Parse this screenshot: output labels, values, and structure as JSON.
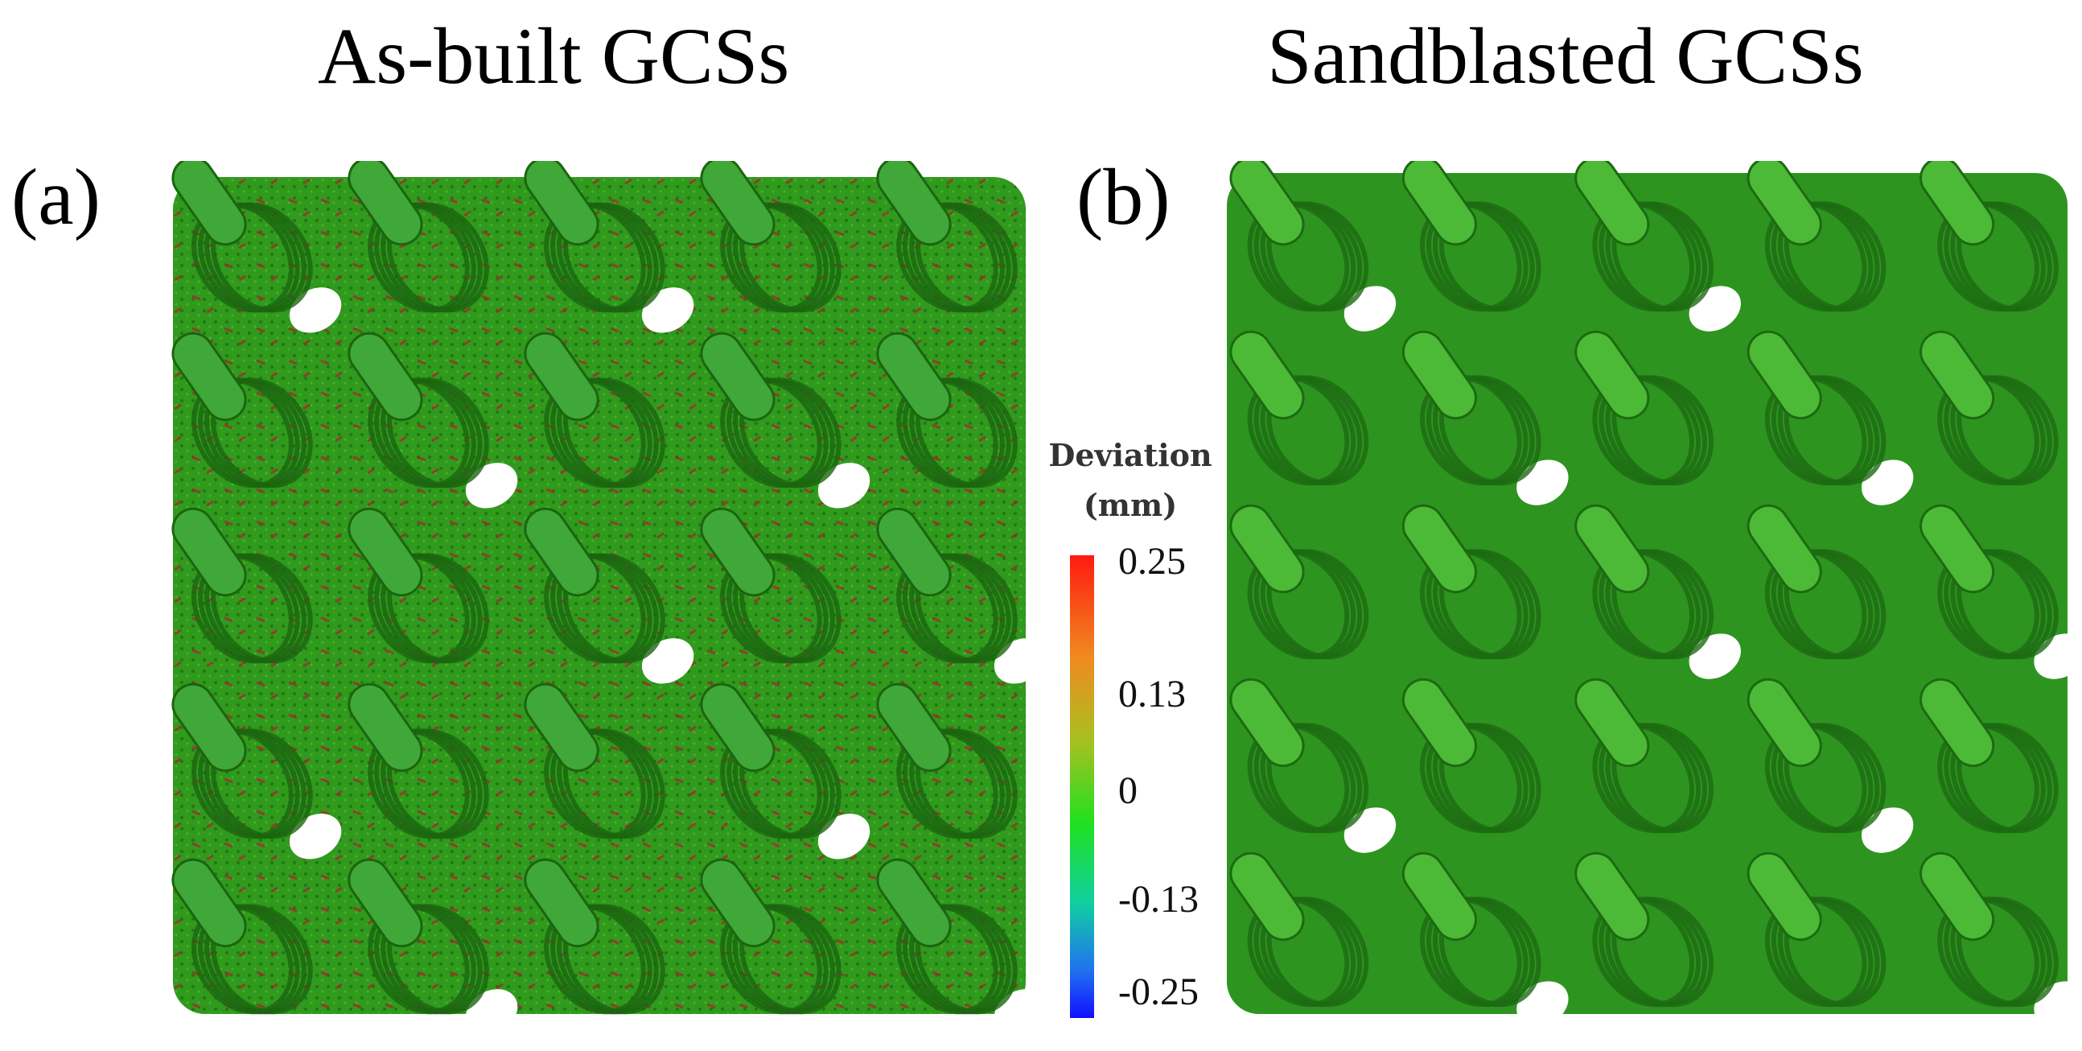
{
  "titles": {
    "left": "As-built GCSs",
    "right": "Sandblasted GCSs"
  },
  "panel_labels": {
    "a": "(a)",
    "b": "(b)"
  },
  "legend": {
    "title_line1": "Deviation",
    "title_line2": "(mm)",
    "ticks": [
      "0.25",
      "0.13",
      "0",
      "-0.13",
      "-0.25"
    ],
    "colors": [
      "#ff1a10",
      "#a8c020",
      "#20e020",
      "#10d0a0",
      "#1010ff"
    ]
  },
  "colors": {
    "scaffold_base": "#2f9a1c",
    "scaffold_dark": "#1f6e12",
    "strut": "#47b53b",
    "deviation_high": "#b8182a"
  }
}
